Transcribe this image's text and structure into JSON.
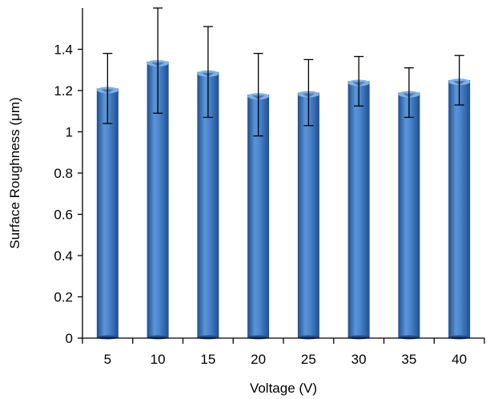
{
  "chart_data": {
    "type": "bar",
    "title": "",
    "xlabel": "Voltage (V)",
    "ylabel": "Surface Roughness (μm)",
    "categories": [
      "5",
      "10",
      "15",
      "20",
      "25",
      "30",
      "35",
      "40"
    ],
    "values": [
      1.21,
      1.34,
      1.29,
      1.18,
      1.19,
      1.245,
      1.19,
      1.25
    ],
    "error_upper": [
      1.38,
      1.6,
      1.51,
      1.38,
      1.35,
      1.365,
      1.31,
      1.37
    ],
    "error_lower": [
      1.04,
      1.09,
      1.07,
      0.98,
      1.03,
      1.125,
      1.07,
      1.13
    ],
    "ylim": [
      0,
      1.6
    ],
    "yticks": [
      "0",
      "0.2",
      "0.4",
      "0.6",
      "0.8",
      "1",
      "1.2",
      "1.4"
    ],
    "ytick_values": [
      0,
      0.2,
      0.4,
      0.6,
      0.8,
      1.0,
      1.2,
      1.4
    ],
    "grid": false,
    "legend": "none",
    "bar_color": "#3d78c2",
    "bar_dark": "#1f4f8f",
    "bar_light": "#7fb0e6"
  }
}
